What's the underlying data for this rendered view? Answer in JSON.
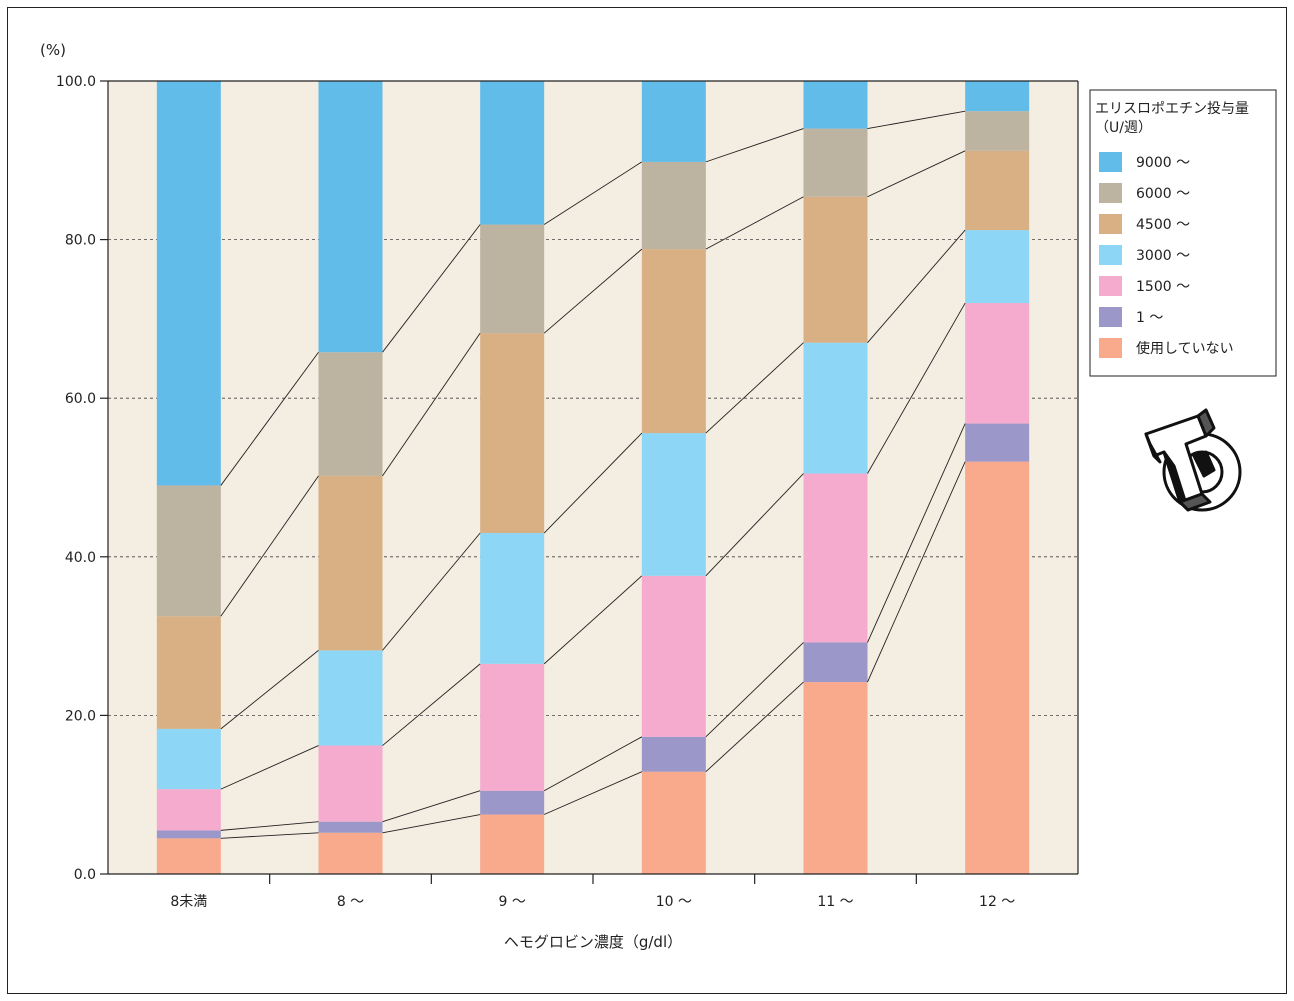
{
  "chart_data": {
    "type": "bar",
    "stacked": true,
    "ylabel": "(%)",
    "xlabel": "ヘモグロビン濃度（g/dl）",
    "ylim": [
      0,
      100
    ],
    "yticks": [
      "0.0",
      "20.0",
      "40.0",
      "60.0",
      "80.0",
      "100.0"
    ],
    "grid": true,
    "categories": [
      "8未満",
      "8 〜",
      "9 〜",
      "10 〜",
      "11 〜",
      "12 〜"
    ],
    "legend_title": "エリスロポエチン投与量\n（U/週）",
    "legend_position": "right",
    "series": [
      {
        "name": "使用していない",
        "color": "#f9a98c",
        "values": [
          4.5,
          5.2,
          7.5,
          12.9,
          24.2,
          52.0
        ]
      },
      {
        "name": "1 〜",
        "color": "#9b97c9",
        "values": [
          1.0,
          1.4,
          3.0,
          4.4,
          5.0,
          4.8
        ]
      },
      {
        "name": "1500 〜",
        "color": "#f4abcd",
        "values": [
          5.2,
          9.6,
          16.0,
          20.3,
          21.3,
          15.2
        ]
      },
      {
        "name": "3000 〜",
        "color": "#8dd6f5",
        "values": [
          7.6,
          12.0,
          16.5,
          18.0,
          16.5,
          9.2
        ]
      },
      {
        "name": "4500 〜",
        "color": "#d8b084",
        "values": [
          14.2,
          22.0,
          25.2,
          23.2,
          18.4,
          10.0
        ]
      },
      {
        "name": "6000 〜",
        "color": "#bdb3a1",
        "values": [
          16.5,
          15.6,
          13.7,
          11.0,
          8.6,
          5.0
        ]
      },
      {
        "name": "9000 〜",
        "color": "#62bce9",
        "values": [
          51.0,
          34.2,
          18.1,
          10.2,
          6.0,
          3.8
        ]
      }
    ]
  },
  "logo": {
    "name": "TD logo"
  },
  "style": {
    "plot_bg": "#f4ede1",
    "grid_color": "#444444",
    "connector_color": "#222222"
  }
}
